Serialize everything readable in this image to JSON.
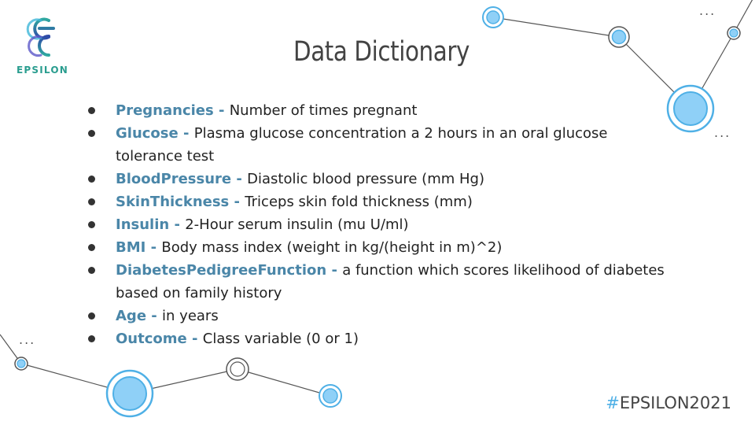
{
  "logo": {
    "text": "EPSILON"
  },
  "title": "Data Dictionary",
  "items": [
    {
      "term": "Pregnancies",
      "sep": " - ",
      "desc": "Number of times pregnant"
    },
    {
      "term": "Glucose",
      "sep": " - ",
      "desc": "Plasma glucose concentration a 2 hours in an oral glucose tolerance test"
    },
    {
      "term": "BloodPressure",
      "sep": " - ",
      "desc": "Diastolic blood pressure (mm Hg)"
    },
    {
      "term": "SkinThickness",
      "sep": " - ",
      "desc": "Triceps skin fold thickness (mm)"
    },
    {
      "term": "Insulin",
      "sep": " - ",
      "desc": "2-Hour serum insulin (mu U/ml)"
    },
    {
      "term": "BMI",
      "sep": " - ",
      "desc": "Body mass index (weight in kg/(height in m)^2)"
    },
    {
      "term": "DiabetesPedigreeFunction",
      "sep": " - ",
      "desc": "a function which scores likelihood of diabetes based on family history"
    },
    {
      "term": "Age",
      "sep": " - ",
      "desc": "in years"
    },
    {
      "term": "Outcome",
      "sep": " - ",
      "desc": "Class variable (0 or 1)"
    }
  ],
  "hashtag": {
    "hash": "#",
    "text": "EPSILON2021"
  },
  "ellipsis": "...",
  "colors": {
    "accent": "#4a86a8",
    "node_fill": "#8fd0f7",
    "node_ring": "#4fb0e6",
    "logo": "#2a9d8f"
  }
}
